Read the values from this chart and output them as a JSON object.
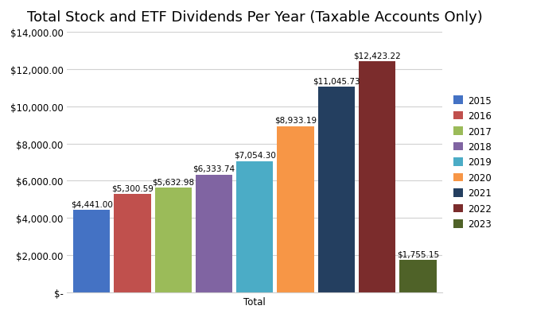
{
  "title": "Total Stock and ETF Dividends Per Year (Taxable Accounts Only)",
  "xlabel": "Total",
  "years": [
    "2015",
    "2016",
    "2017",
    "2018",
    "2019",
    "2020",
    "2021",
    "2022",
    "2023"
  ],
  "values": [
    4441.0,
    5300.59,
    5632.98,
    6333.74,
    7054.3,
    8933.19,
    11045.73,
    12423.22,
    1755.15
  ],
  "labels": [
    "$4,441.00",
    "$5,300.59",
    "$5,632.98",
    "$6,333.74",
    "$7,054.30",
    "$8,933.19",
    "$11,045.73",
    "$12,423.22",
    "$1,755.15"
  ],
  "colors": [
    "#4472C4",
    "#C0504D",
    "#9BBB59",
    "#8064A2",
    "#4BACC6",
    "#F79646",
    "#243F60",
    "#7B2C2C",
    "#4F6228"
  ],
  "ylim": [
    0,
    14000
  ],
  "yticks": [
    0,
    2000,
    4000,
    6000,
    8000,
    10000,
    12000,
    14000
  ],
  "ytick_labels": [
    "$-",
    "$2,000.00",
    "$4,000.00",
    "$6,000.00",
    "$8,000.00",
    "$10,000.00",
    "$12,000.00",
    "$14,000.00"
  ],
  "background_color": "#FFFFFF",
  "grid_color": "#D0D0D0",
  "title_fontsize": 13,
  "label_fontsize": 7.5,
  "legend_fontsize": 8.5,
  "tick_fontsize": 8.5,
  "bar_width": 0.75,
  "bar_gap": 0.08
}
